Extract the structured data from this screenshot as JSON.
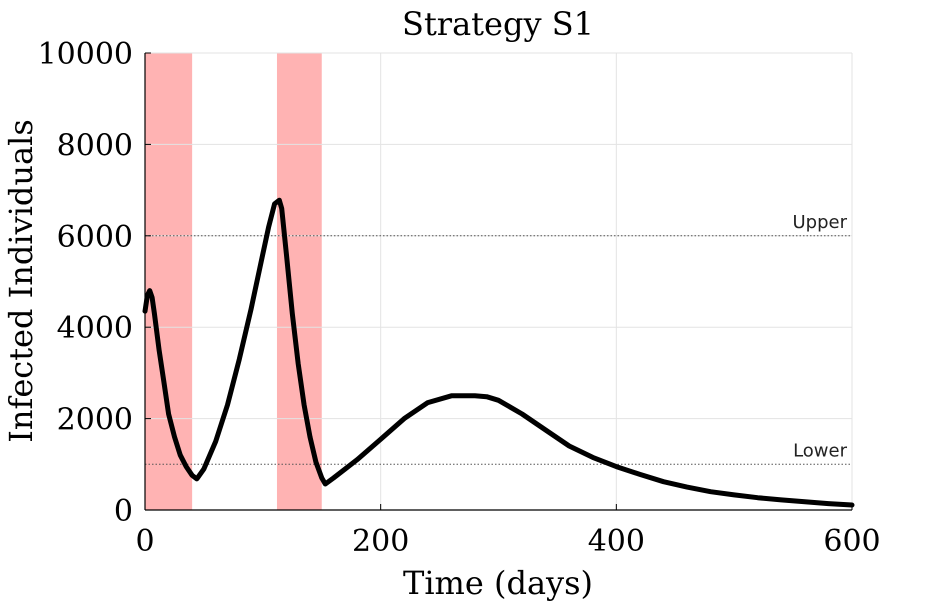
{
  "chart_data": {
    "type": "line",
    "title": "Strategy S1",
    "xlabel": "Time (days)",
    "ylabel": "Infected Individuals",
    "xlim": [
      0,
      600
    ],
    "ylim": [
      0,
      10000
    ],
    "xticks": [
      "0",
      "200",
      "400",
      "600"
    ],
    "yticks": [
      "0",
      "2000",
      "4000",
      "6000",
      "8000",
      "10000"
    ],
    "grid": true,
    "colors": {
      "line": "#000000",
      "shade": "#ffb3b3",
      "grid": "#e3e3e3",
      "threshold": "#555555"
    },
    "shaded_intervals": [
      {
        "start": 0,
        "end": 40
      },
      {
        "start": 112,
        "end": 150
      }
    ],
    "thresholds": [
      {
        "label": "Upper",
        "value": 6000
      },
      {
        "label": "Lower",
        "value": 1000
      }
    ],
    "series": [
      {
        "x": [
          0,
          2,
          4,
          6,
          8,
          12,
          16,
          20,
          25,
          30,
          35,
          40,
          44,
          50,
          60,
          70,
          80,
          90,
          100,
          105,
          110,
          114,
          116,
          120,
          125,
          130,
          135,
          140,
          145,
          150,
          153,
          160,
          170,
          180,
          200,
          220,
          240,
          260,
          280,
          290,
          300,
          320,
          340,
          360,
          380,
          400,
          420,
          440,
          460,
          480,
          500,
          520,
          540,
          560,
          580,
          600
        ],
        "y": [
          4350,
          4700,
          4800,
          4650,
          4300,
          3500,
          2800,
          2100,
          1600,
          1200,
          950,
          760,
          680,
          900,
          1500,
          2300,
          3300,
          4400,
          5600,
          6200,
          6700,
          6780,
          6600,
          5600,
          4300,
          3200,
          2300,
          1600,
          1050,
          700,
          570,
          700,
          900,
          1100,
          1550,
          2000,
          2350,
          2500,
          2500,
          2480,
          2400,
          2100,
          1750,
          1400,
          1150,
          950,
          780,
          620,
          500,
          400,
          330,
          270,
          220,
          180,
          140,
          110
        ]
      }
    ]
  }
}
